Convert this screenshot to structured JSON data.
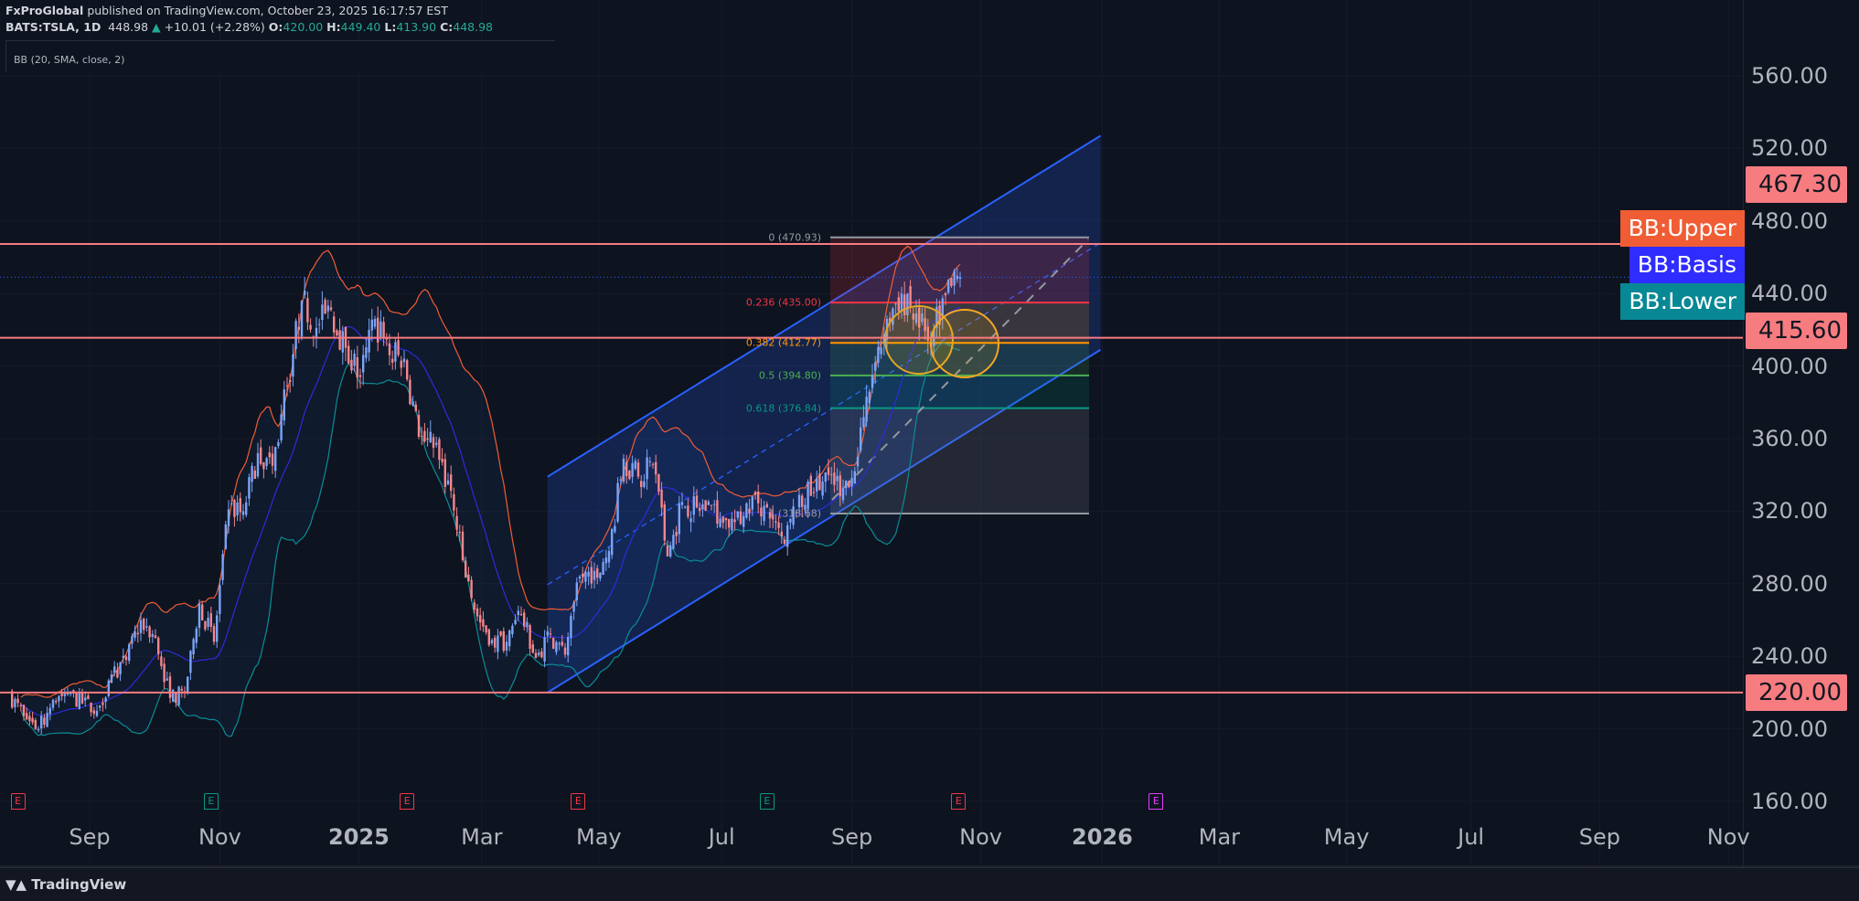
{
  "header": {
    "publisher": "FxProGlobal",
    "published_text": "published on TradingView.com, October 23, 2025 16:17:57 EST",
    "symbol": "BATS:TSLA, 1D",
    "last": "448.98",
    "change": "+10.01 (+2.28%)",
    "o_label": "O:",
    "o": "420.00",
    "h_label": "H:",
    "h": "449.40",
    "l_label": "L:",
    "l": "413.90",
    "c_label": "C:",
    "c": "448.98"
  },
  "indicator_legend": "BB (20, SMA, close, 2)",
  "footer": {
    "logo": "TradingView"
  },
  "colors": {
    "background": "#0e1320",
    "up": "#7ba4f7",
    "down": "#f7868b",
    "bb_upper": "#f05d35",
    "bb_basis": "#2e2bd8",
    "bb_lower": "#0b8c96",
    "hline": "#f77c80",
    "channel": "#2962ff"
  },
  "chart_data": {
    "type": "candlestick",
    "title": "BATS:TSLA, 1D",
    "y_axis": {
      "ticks": [
        "560.00",
        "520.00",
        "480.00",
        "440.00",
        "400.00",
        "360.00",
        "320.00",
        "280.00",
        "240.00",
        "200.00",
        "160.00"
      ],
      "range": [
        160,
        560
      ]
    },
    "x_axis": {
      "ticks": [
        {
          "label": "Sep",
          "week": 5.5,
          "bold": false
        },
        {
          "label": "Nov",
          "week": 14.4,
          "bold": false
        },
        {
          "label": "2025",
          "week": 23.9,
          "bold": true
        },
        {
          "label": "Mar",
          "week": 32.3,
          "bold": false
        },
        {
          "label": "May",
          "week": 40.3,
          "bold": false
        },
        {
          "label": "Jul",
          "week": 48.7,
          "bold": false
        },
        {
          "label": "Sep",
          "week": 57.6,
          "bold": false
        },
        {
          "label": "Nov",
          "week": 66.6,
          "bold": false
        },
        {
          "label": "2026",
          "week": 74.9,
          "bold": true
        },
        {
          "label": "Mar",
          "week": 82.9,
          "bold": false
        },
        {
          "label": "May",
          "week": 91.6,
          "bold": false
        },
        {
          "label": "Jul",
          "week": 100.1,
          "bold": false
        },
        {
          "label": "Sep",
          "week": 108.9,
          "bold": false
        },
        {
          "label": "Nov",
          "week": 117.7,
          "bold": false
        }
      ]
    },
    "weekly_close": [
      219,
      207,
      200,
      216,
      220,
      214,
      210,
      230,
      238,
      260,
      250,
      217,
      220,
      269,
      248,
      321,
      320,
      352,
      345,
      389,
      436,
      421,
      431,
      410,
      394,
      426,
      406,
      404,
      361,
      355,
      337,
      293,
      262,
      249,
      248,
      263,
      239,
      252,
      241,
      284,
      287,
      298,
      349,
      339,
      346,
      295,
      325,
      322,
      323,
      315,
      313,
      329,
      316,
      302,
      329,
      330,
      340,
      333,
      350,
      395,
      426,
      440,
      429,
      413,
      439,
      449
    ],
    "indicator": {
      "name": "Bollinger Bands",
      "length": 20,
      "ma": "SMA",
      "source": "close",
      "mult": 2
    },
    "horizontal_lines": [
      {
        "price": 467.3,
        "label": "467.30"
      },
      {
        "price": 415.6,
        "label": "415.60"
      },
      {
        "price": 220.0,
        "label": "220.00"
      }
    ],
    "last_price": 448.98,
    "bb_labels": {
      "upper": "BB:Upper",
      "basis": "BB:Basis",
      "lower": "BB:Lower"
    },
    "fibonacci": {
      "start_price": 470.93,
      "end_price": 318.68,
      "levels": [
        {
          "ratio": "0",
          "price": "470.93",
          "color": "#9598a1",
          "fill": "rgba(242,54,69,0.18)"
        },
        {
          "ratio": "0.236",
          "price": "435.00",
          "color": "#f23645",
          "fill": "rgba(255,152,0,0.16)"
        },
        {
          "ratio": "0.382",
          "price": "412.77",
          "color": "#ff9800",
          "fill": "rgba(76,175,80,0.16)"
        },
        {
          "ratio": "0.5",
          "price": "394.80",
          "color": "#4caf50",
          "fill": "rgba(8,153,129,0.16)"
        },
        {
          "ratio": "0.618",
          "price": "376.84",
          "color": "#089981",
          "fill": "rgba(120,123,134,0.2)"
        },
        {
          "ratio": "1",
          "price": "318.68",
          "color": "#9598a1",
          "fill": null
        }
      ]
    },
    "parallel_channel": {
      "start_week": 36.8,
      "end_week": 74.6,
      "lower_start": 220,
      "lower_end": 409,
      "upper_start": 339,
      "upper_end": 527
    },
    "earnings_markers": [
      {
        "label": "E",
        "week": 0.6,
        "type": "miss"
      },
      {
        "label": "E",
        "week": 13.8,
        "type": "beat"
      },
      {
        "label": "E",
        "week": 27.2,
        "type": "miss"
      },
      {
        "label": "E",
        "week": 38.9,
        "type": "miss"
      },
      {
        "label": "E",
        "week": 51.8,
        "type": "beat"
      },
      {
        "label": "E",
        "week": 64.9,
        "type": "miss"
      },
      {
        "label": "E",
        "week": 78.4,
        "type": "upcoming"
      }
    ]
  }
}
